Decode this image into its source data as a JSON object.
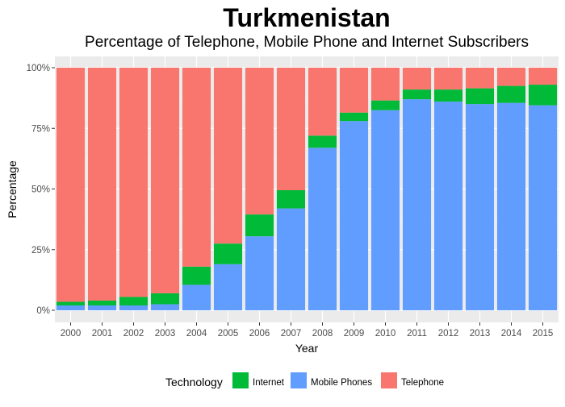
{
  "chart_data": {
    "type": "bar",
    "stacked": true,
    "normalized": true,
    "title": "Turkmenistan",
    "subtitle": "Percentage of Telephone, Mobile Phone and Internet Subscribers",
    "xlabel": "Year",
    "ylabel": "Percentage",
    "ylim": [
      0,
      1
    ],
    "yticks": [
      "0%",
      "25%",
      "50%",
      "75%",
      "100%"
    ],
    "grid": true,
    "legend_position": "bottom",
    "legend_title": "Technology",
    "categories": [
      "2000",
      "2001",
      "2002",
      "2003",
      "2004",
      "2005",
      "2006",
      "2007",
      "2008",
      "2009",
      "2010",
      "2011",
      "2012",
      "2013",
      "2014",
      "2015"
    ],
    "series": [
      {
        "name": "Mobile Phones",
        "color": "#619CFF",
        "values": [
          0.02,
          0.02,
          0.02,
          0.025,
          0.105,
          0.19,
          0.305,
          0.42,
          0.67,
          0.78,
          0.825,
          0.87,
          0.86,
          0.85,
          0.855,
          0.845
        ]
      },
      {
        "name": "Internet",
        "color": "#00BA38",
        "values": [
          0.015,
          0.02,
          0.035,
          0.045,
          0.075,
          0.085,
          0.09,
          0.075,
          0.05,
          0.035,
          0.04,
          0.04,
          0.05,
          0.065,
          0.07,
          0.085
        ]
      },
      {
        "name": "Telephone",
        "color": "#F8766D",
        "values": [
          0.965,
          0.96,
          0.945,
          0.93,
          0.82,
          0.725,
          0.605,
          0.505,
          0.28,
          0.185,
          0.135,
          0.09,
          0.09,
          0.085,
          0.075,
          0.07
        ]
      }
    ],
    "legend_order": [
      "Internet",
      "Mobile Phones",
      "Telephone"
    ]
  }
}
